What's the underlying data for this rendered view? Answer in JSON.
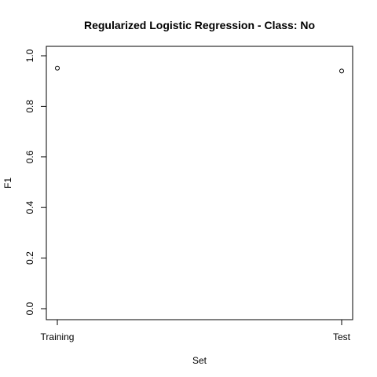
{
  "chart_data": {
    "type": "scatter",
    "title": "Regularized Logistic Regression - Class: No",
    "xlabel": "Set",
    "ylabel": "F1",
    "categories": [
      "Training",
      "Test"
    ],
    "values": [
      0.951,
      0.94
    ],
    "ylim": [
      0.0,
      1.0
    ],
    "yticks": [
      "0.0",
      "0.2",
      "0.4",
      "0.6",
      "0.8",
      "1.0"
    ],
    "grid": false,
    "legend": "none"
  }
}
